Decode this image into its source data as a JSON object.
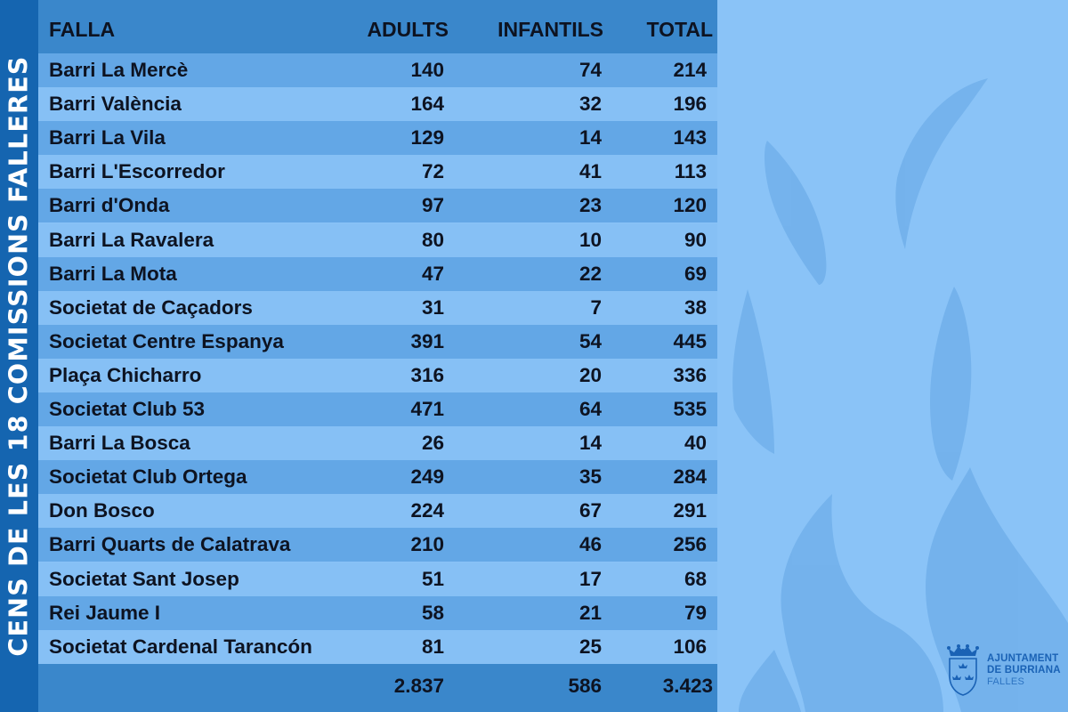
{
  "sidebar": {
    "title": "CENS DE LES 18 COMISSIONS FALLERES"
  },
  "table": {
    "columns": [
      "FALLA",
      "ADULTS",
      "INFANTILS",
      "TOTAL"
    ],
    "rows": [
      {
        "falla": "Barri La Mercè",
        "adults": "140",
        "infantils": "74",
        "total": "214"
      },
      {
        "falla": "Barri València",
        "adults": "164",
        "infantils": "32",
        "total": "196"
      },
      {
        "falla": "Barri La Vila",
        "adults": "129",
        "infantils": "14",
        "total": "143"
      },
      {
        "falla": "Barri L'Escorredor",
        "adults": "72",
        "infantils": "41",
        "total": "113"
      },
      {
        "falla": "Barri d'Onda",
        "adults": "97",
        "infantils": "23",
        "total": "120"
      },
      {
        "falla": "Barri La Ravalera",
        "adults": "80",
        "infantils": "10",
        "total": "90"
      },
      {
        "falla": "Barri La Mota",
        "adults": "47",
        "infantils": "22",
        "total": "69"
      },
      {
        "falla": "Societat de Caçadors",
        "adults": "31",
        "infantils": "7",
        "total": "38"
      },
      {
        "falla": "Societat Centre Espanya",
        "adults": "391",
        "infantils": "54",
        "total": "445"
      },
      {
        "falla": "Plaça Chicharro",
        "adults": "316",
        "infantils": "20",
        "total": "336"
      },
      {
        "falla": "Societat Club 53",
        "adults": "471",
        "infantils": "64",
        "total": "535"
      },
      {
        "falla": "Barri La Bosca",
        "adults": "26",
        "infantils": "14",
        "total": "40"
      },
      {
        "falla": "Societat Club Ortega",
        "adults": "249",
        "infantils": "35",
        "total": "284"
      },
      {
        "falla": "Don Bosco",
        "adults": "224",
        "infantils": "67",
        "total": "291"
      },
      {
        "falla": "Barri Quarts de Calatrava",
        "adults": "210",
        "infantils": "46",
        "total": "256"
      },
      {
        "falla": "Societat Sant Josep",
        "adults": "51",
        "infantils": "17",
        "total": "68"
      },
      {
        "falla": "Rei Jaume I",
        "adults": "58",
        "infantils": "21",
        "total": "79"
      },
      {
        "falla": "Societat Cardenal Tarancón",
        "adults": "81",
        "infantils": "25",
        "total": "106"
      }
    ],
    "totals": {
      "falla": "",
      "adults": "2.837",
      "infantils": "586",
      "total": "3.423"
    }
  },
  "logo": {
    "line1": "AJUNTAMENT",
    "line2": "DE BURRIANA",
    "line3": "FALLES",
    "icon": "coat-of-arms-icon"
  },
  "colors": {
    "background": "#8ac3f7",
    "sidebar": "#1565b0",
    "header_row": "#3a87cb",
    "row_dark": "#63a7e6",
    "row_light": "#86c0f5",
    "text": "#0d1321",
    "logo_text": "#1a62b5"
  }
}
